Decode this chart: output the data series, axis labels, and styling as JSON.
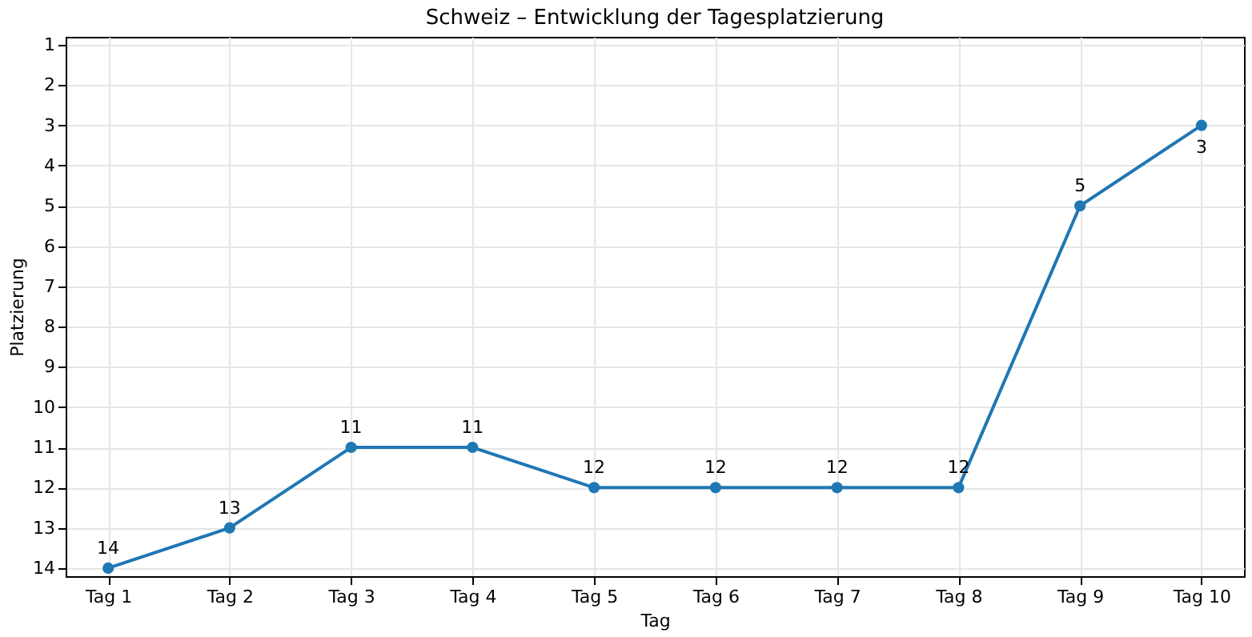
{
  "chart_data": {
    "type": "line",
    "title": "Schweiz – Entwicklung der Tagesplatzierung",
    "xlabel": "Tag",
    "ylabel": "Platzierung",
    "categories": [
      "Tag 1",
      "Tag 2",
      "Tag 3",
      "Tag 4",
      "Tag 5",
      "Tag 6",
      "Tag 7",
      "Tag 8",
      "Tag 9",
      "Tag 10"
    ],
    "series": [
      {
        "color": "#1f77b4",
        "values": [
          14,
          13,
          11,
          11,
          12,
          12,
          12,
          12,
          5,
          3
        ]
      }
    ],
    "ylim": [
      14.2,
      0.8
    ],
    "yticks": [
      1,
      2,
      3,
      4,
      5,
      6,
      7,
      8,
      9,
      10,
      11,
      12,
      13,
      14
    ],
    "grid": true,
    "marker": "circle",
    "line_style": "solid",
    "data_labels": true
  }
}
